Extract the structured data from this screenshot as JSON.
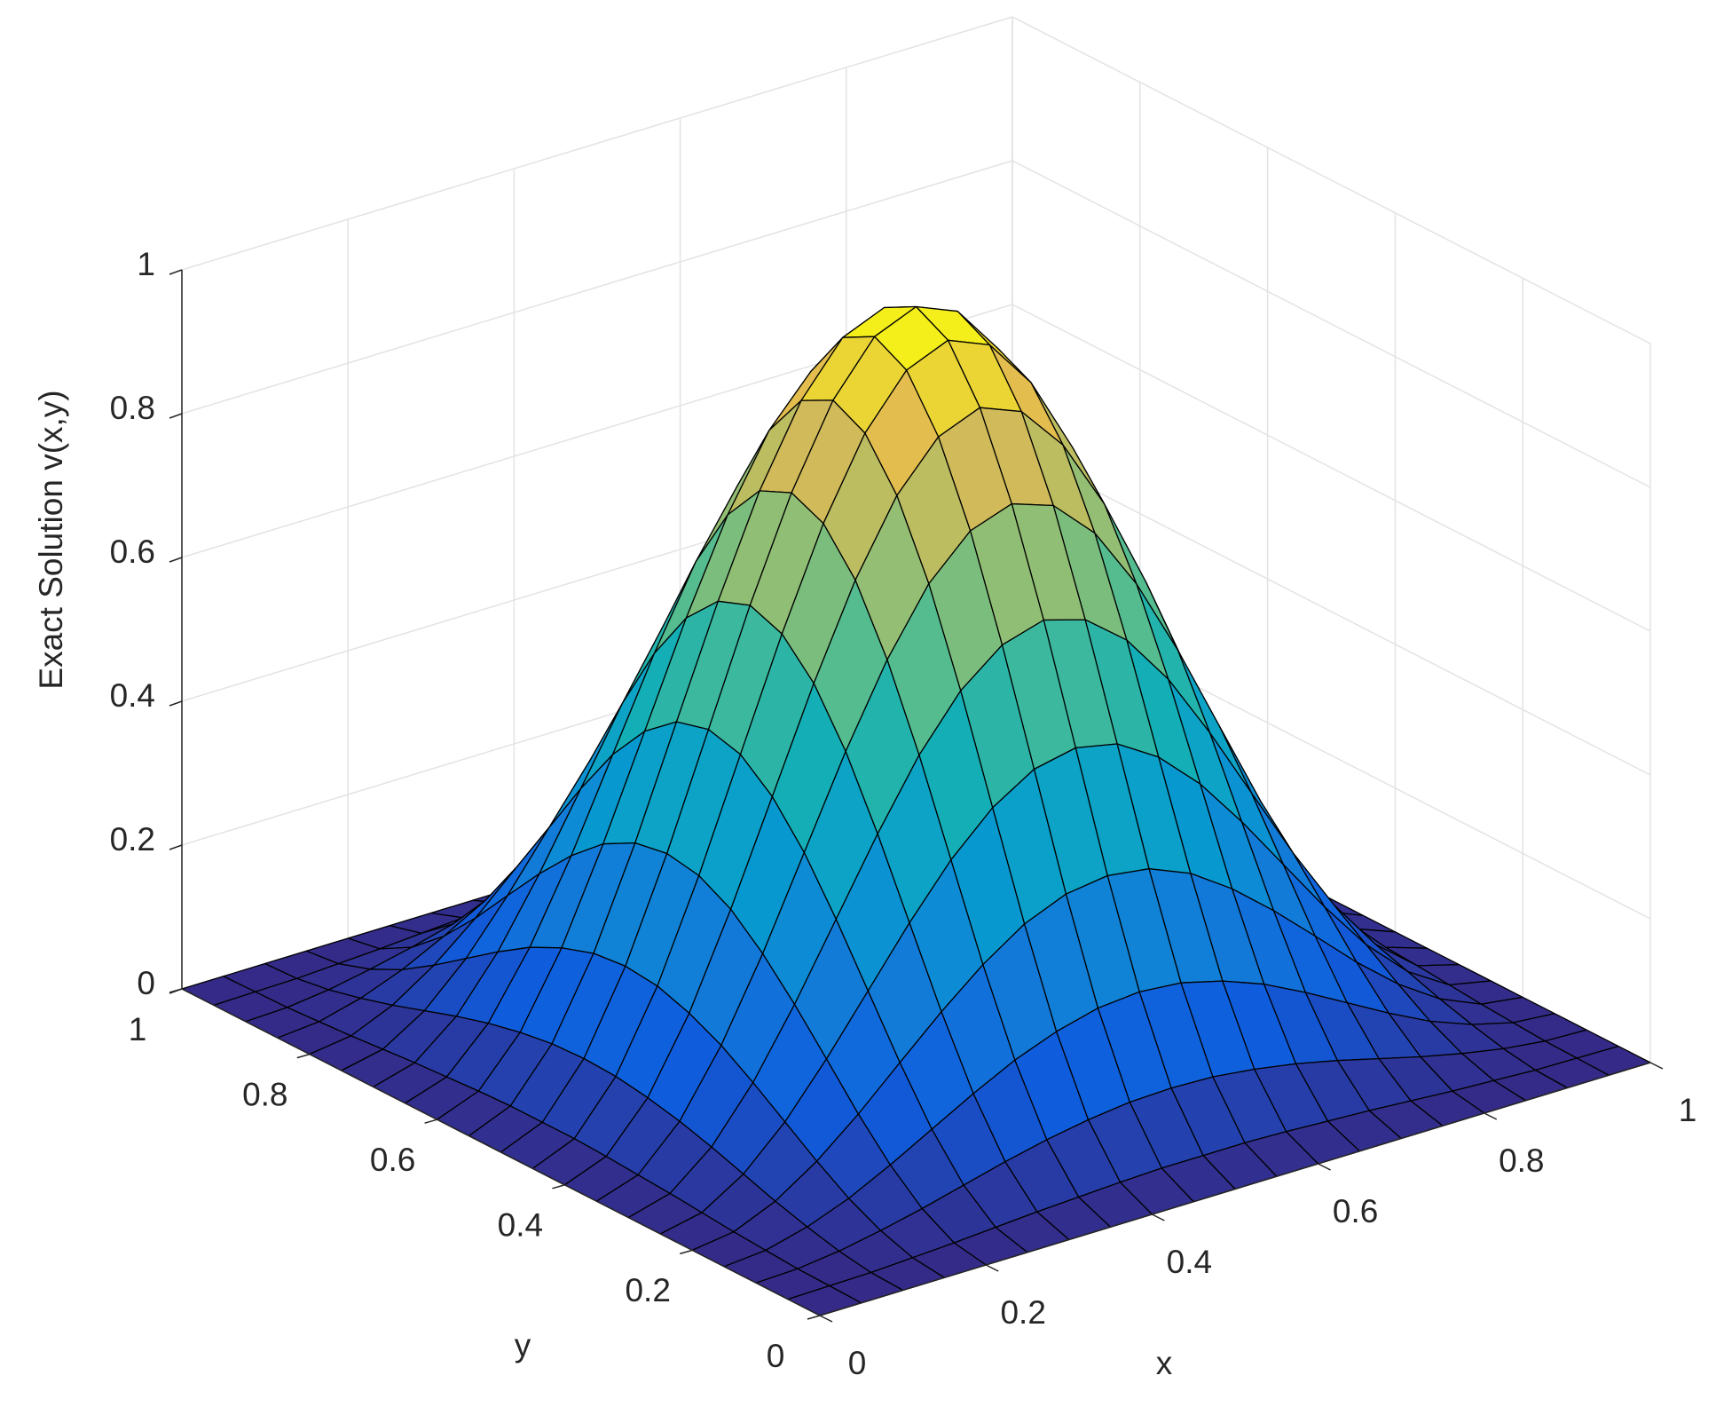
{
  "chart_data": {
    "type": "surface",
    "xlabel": "x",
    "ylabel": "y",
    "zlabel": "Exact Solution v(x,y)",
    "x": [
      0,
      0.05,
      0.1,
      0.15,
      0.2,
      0.25,
      0.3,
      0.35,
      0.4,
      0.45,
      0.5,
      0.55,
      0.6,
      0.65,
      0.7,
      0.75,
      0.8,
      0.85,
      0.9,
      0.95,
      1
    ],
    "y": [
      0,
      0.05,
      0.1,
      0.15,
      0.2,
      0.25,
      0.3,
      0.35,
      0.4,
      0.45,
      0.5,
      0.55,
      0.6,
      0.65,
      0.7,
      0.75,
      0.8,
      0.85,
      0.9,
      0.95,
      1
    ],
    "z": [
      [
        0,
        0,
        0,
        0,
        0,
        0,
        0,
        0,
        0,
        0,
        0,
        0,
        0,
        0,
        0,
        0,
        0,
        0,
        0,
        0,
        0
      ],
      [
        0,
        0.001,
        0.002,
        0.005,
        0.008,
        0.012,
        0.016,
        0.019,
        0.022,
        0.024,
        0.024,
        0.024,
        0.022,
        0.019,
        0.016,
        0.012,
        0.008,
        0.005,
        0.002,
        0.001,
        0
      ],
      [
        0,
        0.002,
        0.009,
        0.02,
        0.033,
        0.048,
        0.063,
        0.076,
        0.086,
        0.093,
        0.095,
        0.093,
        0.086,
        0.076,
        0.063,
        0.048,
        0.033,
        0.02,
        0.009,
        0.002,
        0
      ],
      [
        0,
        0.005,
        0.02,
        0.042,
        0.071,
        0.103,
        0.135,
        0.164,
        0.186,
        0.201,
        0.206,
        0.201,
        0.186,
        0.164,
        0.135,
        0.103,
        0.071,
        0.042,
        0.02,
        0.005,
        0
      ],
      [
        0,
        0.008,
        0.033,
        0.071,
        0.119,
        0.173,
        0.226,
        0.274,
        0.313,
        0.337,
        0.345,
        0.337,
        0.313,
        0.274,
        0.226,
        0.173,
        0.119,
        0.071,
        0.033,
        0.008,
        0
      ],
      [
        0,
        0.012,
        0.048,
        0.103,
        0.173,
        0.25,
        0.327,
        0.397,
        0.452,
        0.488,
        0.5,
        0.488,
        0.452,
        0.397,
        0.327,
        0.25,
        0.173,
        0.103,
        0.048,
        0.012,
        0
      ],
      [
        0,
        0.016,
        0.063,
        0.135,
        0.226,
        0.327,
        0.428,
        0.52,
        0.592,
        0.638,
        0.655,
        0.638,
        0.592,
        0.52,
        0.428,
        0.327,
        0.226,
        0.135,
        0.063,
        0.016,
        0
      ],
      [
        0,
        0.019,
        0.076,
        0.164,
        0.274,
        0.397,
        0.52,
        0.63,
        0.718,
        0.774,
        0.794,
        0.774,
        0.718,
        0.63,
        0.52,
        0.397,
        0.274,
        0.164,
        0.076,
        0.019,
        0
      ],
      [
        0,
        0.022,
        0.086,
        0.186,
        0.313,
        0.452,
        0.592,
        0.718,
        0.818,
        0.882,
        0.905,
        0.882,
        0.818,
        0.718,
        0.592,
        0.452,
        0.313,
        0.186,
        0.086,
        0.022,
        0
      ],
      [
        0,
        0.024,
        0.093,
        0.201,
        0.337,
        0.488,
        0.638,
        0.774,
        0.882,
        0.952,
        0.976,
        0.952,
        0.882,
        0.774,
        0.638,
        0.488,
        0.337,
        0.201,
        0.093,
        0.024,
        0
      ],
      [
        0,
        0.024,
        0.095,
        0.206,
        0.345,
        0.5,
        0.655,
        0.794,
        0.905,
        0.976,
        1,
        0.976,
        0.905,
        0.794,
        0.655,
        0.5,
        0.345,
        0.206,
        0.095,
        0.024,
        0
      ],
      [
        0,
        0.024,
        0.093,
        0.201,
        0.337,
        0.488,
        0.638,
        0.774,
        0.882,
        0.952,
        0.976,
        0.952,
        0.882,
        0.774,
        0.638,
        0.488,
        0.337,
        0.201,
        0.093,
        0.024,
        0
      ],
      [
        0,
        0.022,
        0.086,
        0.186,
        0.313,
        0.452,
        0.592,
        0.718,
        0.818,
        0.882,
        0.905,
        0.882,
        0.818,
        0.718,
        0.592,
        0.452,
        0.313,
        0.186,
        0.086,
        0.022,
        0
      ],
      [
        0,
        0.019,
        0.076,
        0.164,
        0.274,
        0.397,
        0.52,
        0.63,
        0.718,
        0.774,
        0.794,
        0.774,
        0.718,
        0.63,
        0.52,
        0.397,
        0.274,
        0.164,
        0.076,
        0.019,
        0
      ],
      [
        0,
        0.016,
        0.063,
        0.135,
        0.226,
        0.327,
        0.428,
        0.52,
        0.592,
        0.638,
        0.655,
        0.638,
        0.592,
        0.52,
        0.428,
        0.327,
        0.226,
        0.135,
        0.063,
        0.016,
        0
      ],
      [
        0,
        0.012,
        0.048,
        0.103,
        0.173,
        0.25,
        0.327,
        0.397,
        0.452,
        0.488,
        0.5,
        0.488,
        0.452,
        0.397,
        0.327,
        0.25,
        0.173,
        0.103,
        0.048,
        0.012,
        0
      ],
      [
        0,
        0.008,
        0.033,
        0.071,
        0.119,
        0.173,
        0.226,
        0.274,
        0.313,
        0.337,
        0.345,
        0.337,
        0.313,
        0.274,
        0.226,
        0.173,
        0.119,
        0.071,
        0.033,
        0.008,
        0
      ],
      [
        0,
        0.005,
        0.02,
        0.042,
        0.071,
        0.103,
        0.135,
        0.164,
        0.186,
        0.201,
        0.206,
        0.201,
        0.186,
        0.164,
        0.135,
        0.103,
        0.071,
        0.042,
        0.02,
        0.005,
        0
      ],
      [
        0,
        0.002,
        0.009,
        0.02,
        0.033,
        0.048,
        0.063,
        0.076,
        0.086,
        0.093,
        0.095,
        0.093,
        0.086,
        0.076,
        0.063,
        0.048,
        0.033,
        0.02,
        0.009,
        0.002,
        0
      ],
      [
        0,
        0.001,
        0.002,
        0.005,
        0.008,
        0.012,
        0.016,
        0.019,
        0.022,
        0.024,
        0.024,
        0.024,
        0.022,
        0.019,
        0.016,
        0.012,
        0.008,
        0.005,
        0.002,
        0.001,
        0
      ],
      [
        0,
        0,
        0,
        0,
        0,
        0,
        0,
        0,
        0,
        0,
        0,
        0,
        0,
        0,
        0,
        0,
        0,
        0,
        0,
        0,
        0
      ]
    ],
    "xlim": [
      0,
      1
    ],
    "ylim": [
      0,
      1
    ],
    "zlim": [
      0,
      1
    ],
    "xticks": [
      0,
      0.2,
      0.4,
      0.6,
      0.8,
      1
    ],
    "yticks": [
      0,
      0.2,
      0.4,
      0.6,
      0.8,
      1
    ],
    "zticks": [
      0,
      0.2,
      0.4,
      0.6,
      0.8,
      1
    ],
    "colormap": "parula",
    "grid": true
  }
}
